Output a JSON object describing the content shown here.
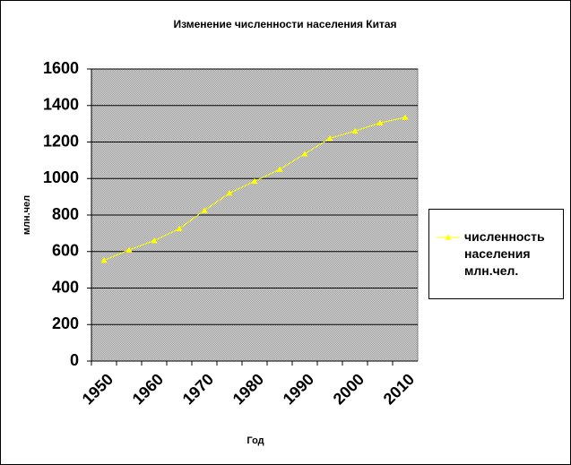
{
  "chart_data": {
    "type": "line",
    "title": "Изменение численности населения Китая",
    "x_label": "Год",
    "y_label": "млн.чел",
    "categories": [
      "1950",
      null,
      "1960",
      null,
      "1970",
      null,
      "1980",
      null,
      "1990",
      null,
      "2000",
      null,
      "2010"
    ],
    "series": [
      {
        "name": "численность населения млн.чел.",
        "color": "#ffff00",
        "values": [
          552,
          609,
          660,
          725,
          825,
          920,
          985,
          1050,
          1135,
          1220,
          1260,
          1305,
          1335
        ]
      }
    ],
    "ylim": [
      0,
      1600
    ],
    "yticks": [
      0,
      200,
      400,
      600,
      800,
      1000,
      1200,
      1400,
      1600
    ],
    "grid": true,
    "legend": "right"
  }
}
